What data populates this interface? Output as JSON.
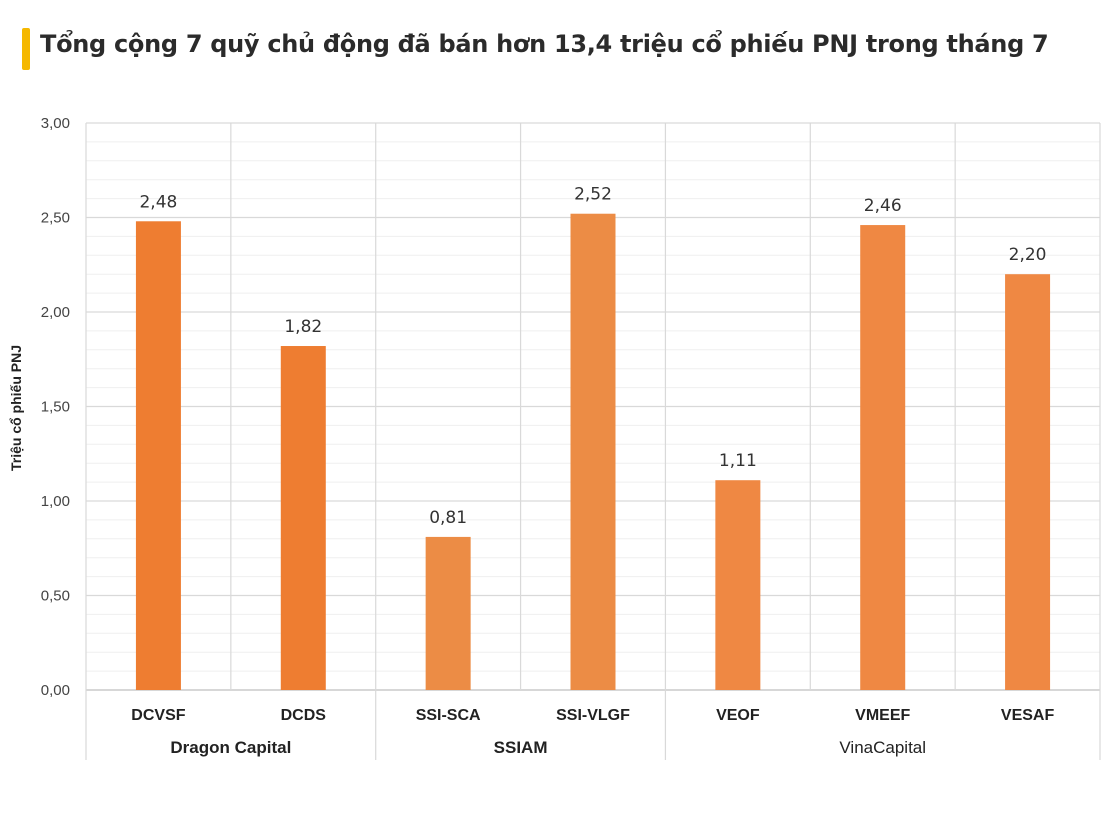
{
  "header": {
    "title": "Tổng cộng 7 quỹ chủ động đã bán hơn 13,4 triệu cổ phiếu PNJ trong tháng 7",
    "accent_color": "#F5B800"
  },
  "chart_data": {
    "type": "bar",
    "title": "",
    "ylabel": "Triệu cổ phiếu PNJ",
    "xlabel": "",
    "ylim": [
      0,
      3
    ],
    "yticks": [
      0,
      0.5,
      1,
      1.5,
      2,
      2.5,
      3
    ],
    "ytick_labels": [
      "0,00",
      "0,50",
      "1,00",
      "1,50",
      "2,00",
      "2,50",
      "3,00"
    ],
    "categories": [
      "DCVSF",
      "DCDS",
      "SSI-SCA",
      "SSI-VLGF",
      "VEOF",
      "VMEEF",
      "VESAF"
    ],
    "values": [
      2.48,
      1.82,
      0.81,
      2.52,
      1.11,
      2.46,
      2.2
    ],
    "value_labels": [
      "2,48",
      "1,82",
      "0,81",
      "2,52",
      "1,11",
      "2,46",
      "2,20"
    ],
    "groups": [
      {
        "name": "Dragon Capital",
        "count": 2,
        "bold": true
      },
      {
        "name": "SSIAM",
        "count": 2,
        "bold": true
      },
      {
        "name": "VinaCapital",
        "count": 3,
        "bold": false
      }
    ],
    "bar_colors": [
      "#EE7D31",
      "#EE7D31",
      "#EC8C45",
      "#EC8C45",
      "#EF8843",
      "#EF8843",
      "#EF8843"
    ],
    "grid": true,
    "legend": "none"
  }
}
